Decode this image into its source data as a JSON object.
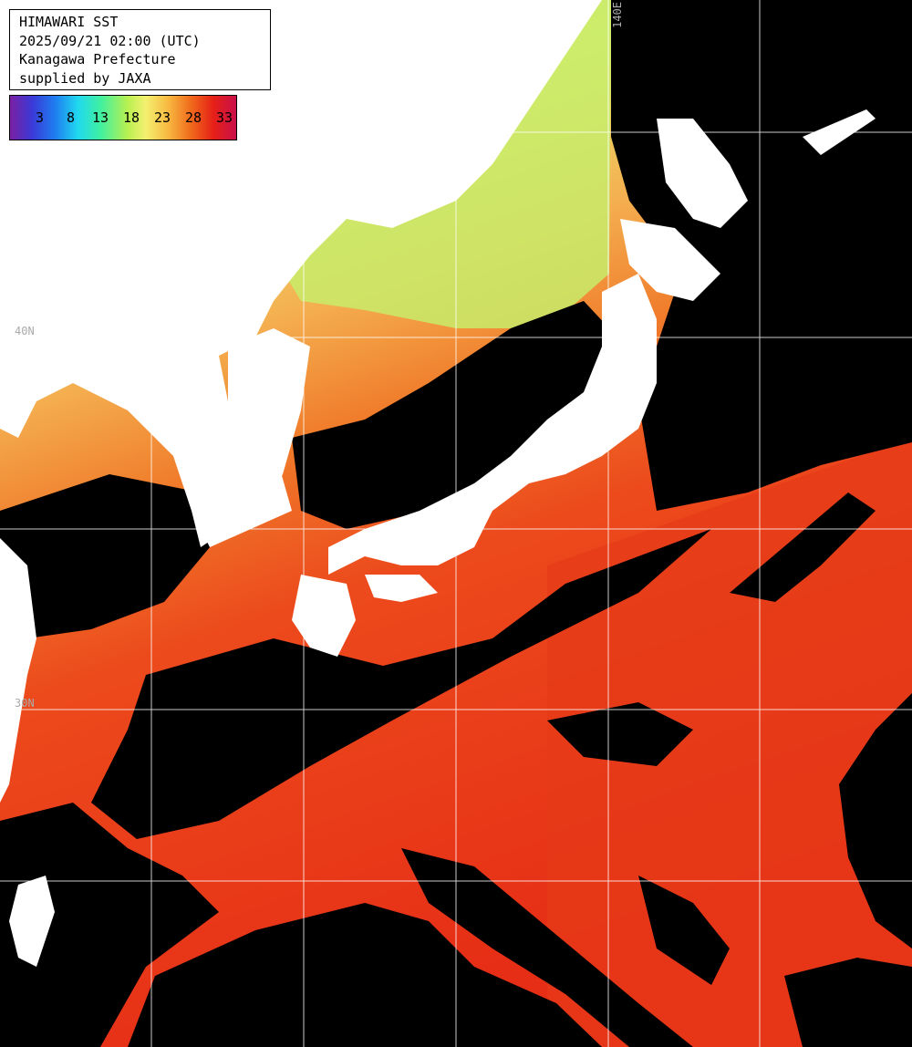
{
  "title_box": {
    "line1": "HIMAWARI SST",
    "line2": "2025/09/21 02:00 (UTC)",
    "line3": "Kanagawa Prefecture",
    "line4": "supplied by JAXA"
  },
  "legend": {
    "ticks": [
      "3",
      "8",
      "13",
      "18",
      "23",
      "28",
      "33"
    ]
  },
  "graticule": {
    "lon_label": "140E",
    "lat_label_1": "40N",
    "lat_label_2": "30N"
  },
  "colors": {
    "land": "#ffffff",
    "cloud": "#000000",
    "cold_sea": "#9ef06a",
    "mid_sea": "#f4c060",
    "warm_sea": "#f07a2a",
    "hot_sea": "#e62e16",
    "grid": "#ffffff"
  }
}
